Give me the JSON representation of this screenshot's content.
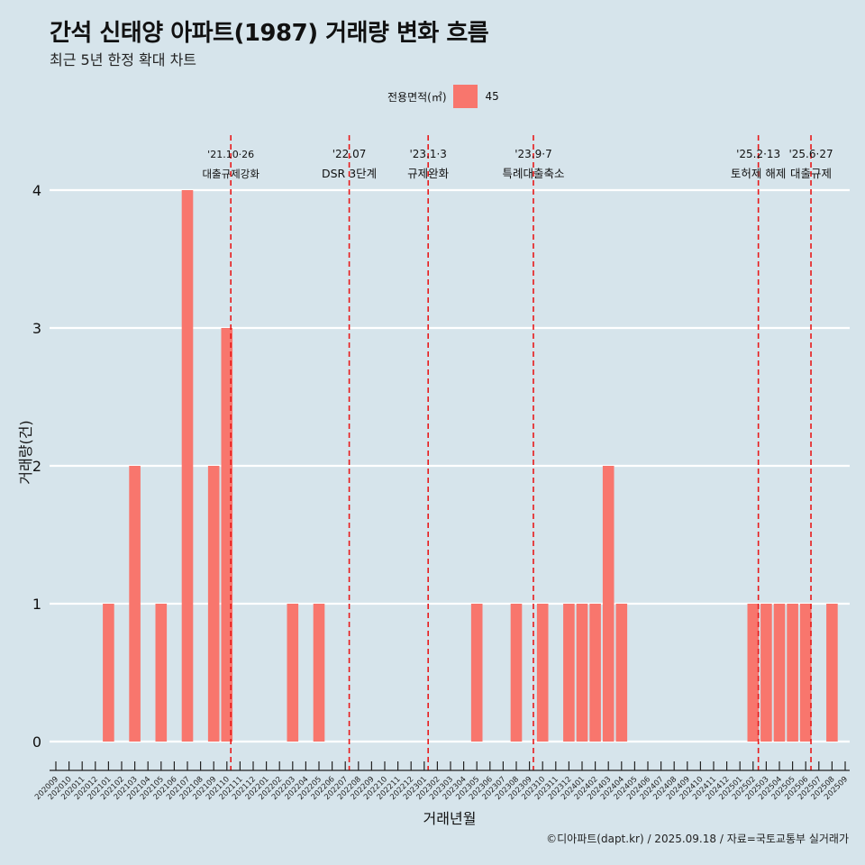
{
  "title": "간석 신태양 아파트(1987) 거래량 변화 흐름",
  "subtitle": "최근 5년 한정 확대 차트",
  "legend": {
    "label": "전용면적(㎡)",
    "entry": "45"
  },
  "caption": "©디아파트(dapt.kr) / 2025.09.18 / 자료=국토교통부 실거래가",
  "colors": {
    "bar": "#f8766d",
    "event_line": "#e8191a",
    "background": "#d6e4eb",
    "grid": "#ffffff"
  },
  "chart_data": {
    "type": "bar",
    "title": "간석 신태양 아파트(1987) 거래량 변화 흐름",
    "xlabel": "거래년월",
    "ylabel": "거래량(건)",
    "ylim": [
      0,
      4
    ],
    "yticks": [
      0,
      1,
      2,
      3,
      4
    ],
    "grid": true,
    "legend_position": "top",
    "categories": [
      "202009",
      "202010",
      "202011",
      "202012",
      "202101",
      "202102",
      "202103",
      "202104",
      "202105",
      "202106",
      "202107",
      "202108",
      "202109",
      "202110",
      "202111",
      "202112",
      "202201",
      "202202",
      "202203",
      "202204",
      "202205",
      "202206",
      "202207",
      "202208",
      "202209",
      "202210",
      "202211",
      "202212",
      "202301",
      "202302",
      "202303",
      "202304",
      "202305",
      "202306",
      "202307",
      "202308",
      "202309",
      "202310",
      "202311",
      "202312",
      "202401",
      "202402",
      "202403",
      "202404",
      "202405",
      "202406",
      "202407",
      "202408",
      "202409",
      "202410",
      "202411",
      "202412",
      "202501",
      "202502",
      "202503",
      "202504",
      "202505",
      "202506",
      "202507",
      "202508",
      "202509"
    ],
    "series": [
      {
        "name": "45",
        "values": [
          0,
          0,
          0,
          0,
          1,
          0,
          2,
          0,
          1,
          0,
          4,
          0,
          2,
          3,
          0,
          0,
          0,
          0,
          1,
          0,
          1,
          0,
          0,
          0,
          0,
          0,
          0,
          0,
          0,
          0,
          0,
          0,
          1,
          0,
          0,
          1,
          0,
          1,
          0,
          1,
          1,
          1,
          2,
          1,
          0,
          0,
          0,
          0,
          0,
          0,
          0,
          0,
          0,
          1,
          1,
          1,
          1,
          1,
          0,
          1,
          0
        ]
      }
    ],
    "events": [
      {
        "position": 13.3,
        "date": "'21.10·26",
        "label": "대출규제강화"
      },
      {
        "position": 22.3,
        "date": "'22.07",
        "label": "DSR 3단계"
      },
      {
        "position": 28.3,
        "date": "'23.1·3",
        "label": "규제완화"
      },
      {
        "position": 36.3,
        "date": "'23.9·7",
        "label": "특례대출축소"
      },
      {
        "position": 53.4,
        "date": "'25.2·13",
        "label": "토허제 해제"
      },
      {
        "position": 57.4,
        "date": "'25.6·27",
        "label": "대출규제"
      }
    ]
  }
}
